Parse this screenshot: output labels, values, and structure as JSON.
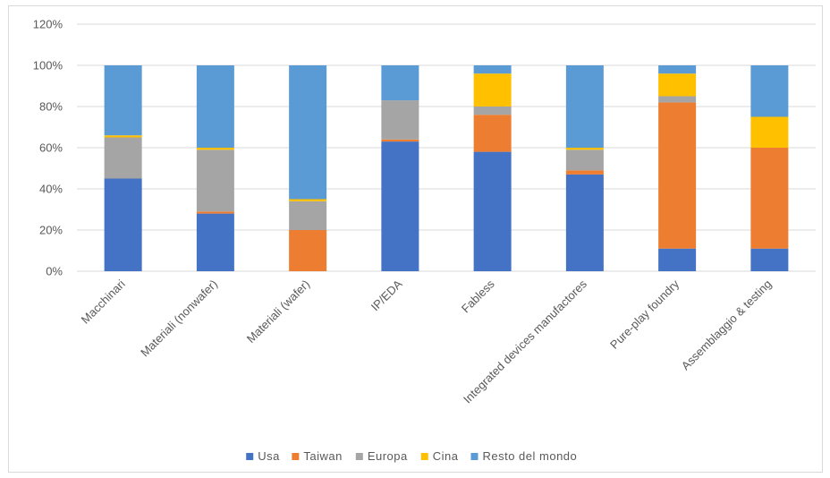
{
  "chart_data": {
    "type": "bar",
    "stacked": true,
    "title": "",
    "xlabel": "",
    "ylabel": "",
    "ylim": [
      0,
      120
    ],
    "yticks": [
      0,
      20,
      40,
      60,
      80,
      100,
      120
    ],
    "ytick_format": "{v}%",
    "grid": true,
    "legend_position": "bottom",
    "categories": [
      "Macchinari",
      "Materiali (nonwafer)",
      "Materiali (wafer)",
      "IP/EDA",
      "Fabless",
      "Integrated devices manufactores",
      "Pure-play foundry",
      "Assemblaggio & testing"
    ],
    "series": [
      {
        "name": "Usa",
        "color": "#4472C4",
        "values": [
          45,
          28,
          0,
          63,
          58,
          47,
          11,
          11
        ]
      },
      {
        "name": "Taiwan",
        "color": "#ED7D31",
        "values": [
          0,
          1,
          20,
          1,
          18,
          2,
          71,
          49
        ]
      },
      {
        "name": "Europa",
        "color": "#A5A5A5",
        "values": [
          20,
          30,
          14,
          19,
          4,
          10,
          3,
          0
        ]
      },
      {
        "name": "Cina",
        "color": "#FFC000",
        "values": [
          1,
          1,
          1,
          0,
          16,
          1,
          11,
          15
        ]
      },
      {
        "name": "Resto del mondo",
        "color": "#5B9BD5",
        "values": [
          34,
          40,
          65,
          17,
          4,
          40,
          4,
          25
        ]
      }
    ]
  }
}
